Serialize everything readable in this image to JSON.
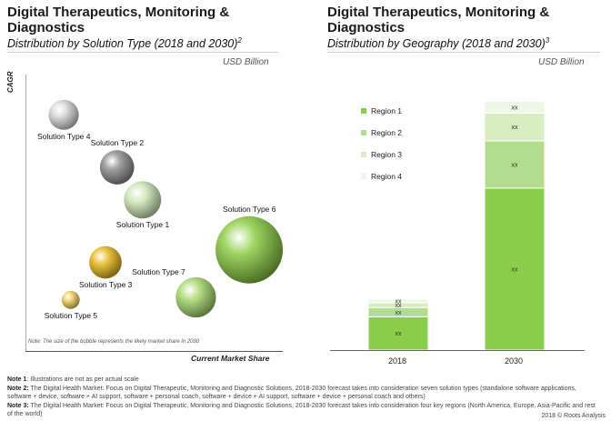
{
  "left_panel": {
    "title": "Digital Therapeutics, Monitoring & Diagnostics",
    "subtitle": "Distribution by Solution Type (2018 and 2030)",
    "subtitle_sup": "2",
    "unit": "USD Billion",
    "y_axis_label": "CAGR",
    "x_axis_label": "Current Market Share",
    "note": "Note: The size of the bubble represents the likely market share in 2030"
  },
  "right_panel": {
    "title": "Digital Therapeutics, Monitoring & Diagnostics",
    "subtitle": "Distribution by Geography (2018 and 2030)",
    "subtitle_sup": "3",
    "unit": "USD Billion"
  },
  "chart_data": [
    {
      "type": "scatter",
      "title": "Distribution by Solution Type (2018 and 2030)",
      "xlabel": "Current Market Share",
      "ylabel": "CAGR",
      "series": [
        {
          "name": "Solution Type 1",
          "x": 0.45,
          "y": 0.55,
          "size": 0.5,
          "color": "#cfe8b8"
        },
        {
          "name": "Solution Type 2",
          "x": 0.34,
          "y": 0.68,
          "size": 0.45,
          "color": "#8f8f8f"
        },
        {
          "name": "Solution Type 3",
          "x": 0.29,
          "y": 0.3,
          "size": 0.42,
          "color": "#e8b820"
        },
        {
          "name": "Solution Type 4",
          "x": 0.11,
          "y": 0.89,
          "size": 0.38,
          "color": "#d8d8d8"
        },
        {
          "name": "Solution Type 5",
          "x": 0.14,
          "y": 0.15,
          "size": 0.18,
          "color": "#f0d060"
        },
        {
          "name": "Solution Type 6",
          "x": 0.91,
          "y": 0.35,
          "size": 1.0,
          "color": "#8ccc45"
        },
        {
          "name": "Solution Type 7",
          "x": 0.68,
          "y": 0.16,
          "size": 0.55,
          "color": "#a8d870"
        }
      ]
    },
    {
      "type": "bar",
      "stacked": true,
      "title": "Distribution by Geography (2018 and 2030)",
      "categories": [
        "2018",
        "2030"
      ],
      "series": [
        {
          "name": "Region 1",
          "values": [
            36,
            175
          ],
          "label": "xx",
          "color": "#8ccc4b"
        },
        {
          "name": "Region 2",
          "values": [
            10,
            51
          ],
          "label": "xx",
          "color": "#b3dd8e"
        },
        {
          "name": "Region 3",
          "values": [
            5,
            30
          ],
          "label": "xx",
          "color": "#d6ecc1"
        },
        {
          "name": "Region 4",
          "values": [
            4,
            13
          ],
          "label": "xx",
          "color": "#eef6e6"
        }
      ],
      "ylim": [
        0,
        280
      ]
    }
  ],
  "notes": [
    {
      "bold": "Note 1",
      "text": ": Illustrations are not as per actual scale"
    },
    {
      "bold": "Note 2:",
      "text": " The Digital Health Market: Focus on Digital Therapeutic, Monitoring and Diagnostic Solutions, 2018-2030 forecast takes into consideration seven solution types (standalone software applications, software + device, software + AI support, software + personal coach, software + device + AI support, software + device + personal coach and others)"
    },
    {
      "bold": "Note 3:",
      "text": " The Digital Health Market: Focus on Digital Therapeutic, Monitoring and Diagnostic Solutions, 2018-2030 forecast takes into consideration four key regions (North America, Europe, Asia-Pacific and rest of the world)"
    }
  ],
  "footer": "2018 © Roots Analysis"
}
